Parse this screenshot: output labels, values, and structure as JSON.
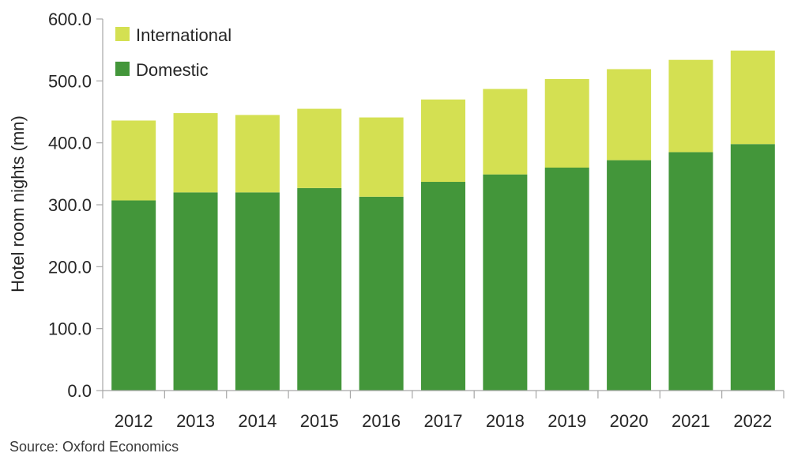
{
  "chart_data": {
    "type": "bar",
    "stacked": true,
    "title": "",
    "xlabel": "",
    "ylabel": "Hotel room nights (mn)",
    "ylim": [
      0,
      600
    ],
    "yticks": [
      "0.0",
      "100.0",
      "200.0",
      "300.0",
      "400.0",
      "500.0",
      "600.0"
    ],
    "categories": [
      "2012",
      "2013",
      "2014",
      "2015",
      "2016",
      "2017",
      "2018",
      "2019",
      "2020",
      "2021",
      "2022"
    ],
    "series": [
      {
        "name": "Domestic",
        "color": "#43963a",
        "values": [
          307,
          320,
          320,
          327,
          313,
          337,
          349,
          360,
          372,
          385,
          398
        ]
      },
      {
        "name": "International",
        "color": "#d4e052",
        "values": [
          129,
          128,
          125,
          128,
          128,
          133,
          138,
          143,
          147,
          149,
          151
        ]
      }
    ],
    "legend": {
      "position": "top-left",
      "order": [
        "International",
        "Domestic"
      ]
    },
    "grid": false
  },
  "source_note": "Source:  Oxford Economics"
}
